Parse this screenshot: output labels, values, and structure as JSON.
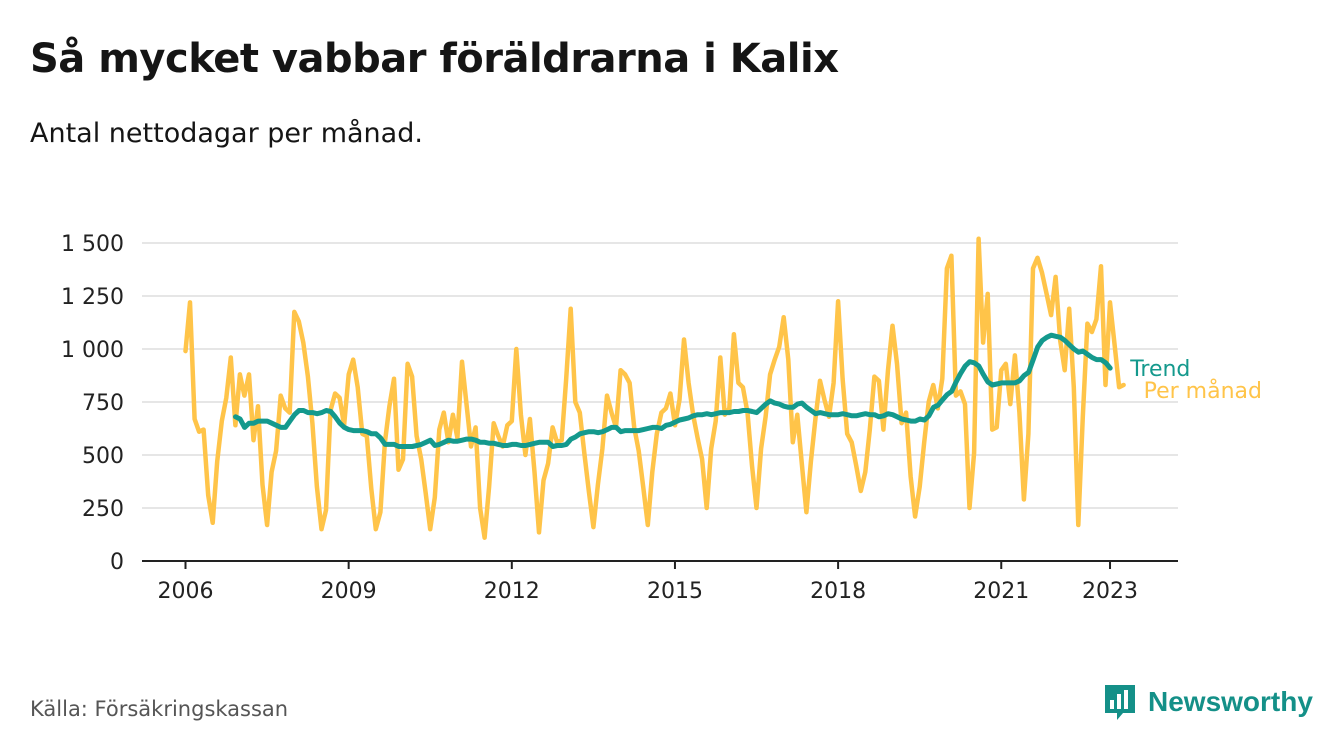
{
  "title": "Så mycket vabbar föräldrarna i Kalix",
  "subtitle": "Antal nettodagar per månad.",
  "source": "Källa: Försäkringskassan",
  "brand": {
    "name": "Newsworthy",
    "icon": "bar-chart-icon",
    "color": "#149088"
  },
  "colors": {
    "monthly": "#FFC449",
    "trend": "#14998D",
    "grid": "#DDDDDD",
    "axis": "#222222"
  },
  "chart_data": {
    "type": "line",
    "xlabel": "",
    "ylabel": "",
    "ylim": [
      0,
      1500
    ],
    "xlim": [
      2005.2,
      2024.25
    ],
    "yticks": [
      0,
      250,
      500,
      750,
      1000,
      1250,
      1500
    ],
    "ytick_labels": [
      "0",
      "250",
      "500",
      "750",
      "1 000",
      "1 250",
      "1 500"
    ],
    "xticks": [
      2006,
      2009,
      2012,
      2015,
      2018,
      2021,
      2023
    ],
    "xtick_labels": [
      "2006",
      "2009",
      "2012",
      "2015",
      "2018",
      "2021",
      "2023"
    ],
    "grid": true,
    "legend": "direct labels at line ends",
    "series": [
      {
        "name": "Per månad",
        "color": "#FFC449",
        "x_start": 2006.0,
        "x_step": 0.0833333,
        "values": [
          990,
          1220,
          670,
          610,
          620,
          310,
          180,
          470,
          660,
          770,
          960,
          640,
          880,
          780,
          880,
          570,
          730,
          360,
          170,
          420,
          520,
          780,
          720,
          700,
          1175,
          1130,
          1030,
          870,
          650,
          350,
          150,
          240,
          710,
          790,
          770,
          640,
          880,
          950,
          820,
          600,
          590,
          340,
          150,
          230,
          560,
          730,
          860,
          430,
          480,
          930,
          870,
          590,
          480,
          320,
          150,
          300,
          620,
          700,
          560,
          690,
          580,
          940,
          740,
          540,
          630,
          250,
          110,
          350,
          650,
          590,
          540,
          640,
          660,
          1000,
          690,
          500,
          670,
          420,
          135,
          380,
          460,
          630,
          560,
          570,
          860,
          1190,
          750,
          700,
          510,
          330,
          160,
          360,
          530,
          780,
          700,
          630,
          900,
          880,
          840,
          630,
          520,
          350,
          170,
          420,
          600,
          700,
          720,
          790,
          640,
          760,
          1045,
          840,
          690,
          580,
          480,
          250,
          530,
          660,
          960,
          690,
          720,
          1070,
          840,
          820,
          700,
          450,
          250,
          530,
          680,
          880,
          950,
          1010,
          1150,
          950,
          560,
          690,
          460,
          230,
          470,
          670,
          850,
          760,
          680,
          840,
          1225,
          860,
          600,
          560,
          450,
          330,
          420,
          620,
          870,
          850,
          620,
          900,
          1110,
          930,
          650,
          700,
          400,
          210,
          350,
          560,
          750,
          830,
          720,
          860,
          1380,
          1440,
          780,
          800,
          740,
          250,
          510,
          1520,
          1030,
          1260,
          620,
          630,
          900,
          930,
          740,
          970,
          700,
          290,
          600,
          1380,
          1430,
          1360,
          1260,
          1160,
          1340,
          1040,
          900,
          1190,
          820,
          170,
          680,
          1120,
          1080,
          1140,
          1390,
          830,
          1220,
          1020,
          820,
          830
        ]
      },
      {
        "name": "Trend",
        "color": "#14998D",
        "x_start": 2006.92,
        "x_step": 0.0833333,
        "values": [
          680,
          670,
          630,
          650,
          650,
          660,
          660,
          660,
          650,
          640,
          630,
          630,
          660,
          690,
          710,
          710,
          700,
          700,
          695,
          700,
          710,
          705,
          680,
          650,
          630,
          620,
          615,
          615,
          615,
          610,
          600,
          600,
          580,
          550,
          550,
          550,
          540,
          540,
          540,
          540,
          545,
          550,
          560,
          570,
          545,
          550,
          560,
          570,
          565,
          565,
          570,
          575,
          575,
          570,
          560,
          560,
          555,
          555,
          550,
          545,
          545,
          550,
          550,
          545,
          545,
          550,
          555,
          560,
          560,
          560,
          540,
          545,
          545,
          550,
          575,
          585,
          600,
          605,
          610,
          610,
          605,
          610,
          620,
          630,
          630,
          610,
          615,
          615,
          615,
          615,
          620,
          625,
          630,
          630,
          625,
          640,
          645,
          655,
          665,
          670,
          675,
          685,
          690,
          690,
          695,
          690,
          695,
          700,
          700,
          700,
          705,
          705,
          710,
          710,
          705,
          700,
          720,
          740,
          755,
          745,
          740,
          730,
          725,
          725,
          740,
          745,
          725,
          710,
          695,
          700,
          695,
          690,
          690,
          690,
          695,
          690,
          685,
          685,
          690,
          695,
          690,
          690,
          680,
          685,
          695,
          690,
          680,
          670,
          665,
          660,
          660,
          670,
          665,
          685,
          725,
          735,
          760,
          785,
          800,
          845,
          885,
          920,
          940,
          935,
          920,
          880,
          845,
          830,
          835,
          840,
          840,
          840,
          840,
          850,
          875,
          890,
          950,
          1010,
          1040,
          1055,
          1065,
          1060,
          1055,
          1040,
          1020,
          1000,
          985,
          990,
          975,
          960,
          950,
          950,
          935,
          910
        ]
      }
    ]
  }
}
